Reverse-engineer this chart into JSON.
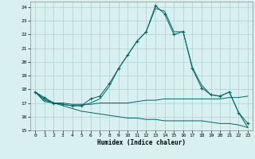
{
  "xlabel": "Humidex (Indice chaleur)",
  "line_color": "#006666",
  "bg_color": "#d8f0f0",
  "grid_color": "#b0d0d0",
  "xlim": [
    -0.5,
    23.5
  ],
  "ylim": [
    15,
    24.4
  ],
  "xticks": [
    0,
    1,
    2,
    3,
    4,
    5,
    6,
    7,
    8,
    9,
    10,
    11,
    12,
    13,
    14,
    15,
    16,
    17,
    18,
    19,
    20,
    21,
    22,
    23
  ],
  "yticks": [
    15,
    16,
    17,
    18,
    19,
    20,
    21,
    22,
    23,
    24
  ],
  "line1_marked": {
    "x": [
      0,
      1,
      2,
      3,
      4,
      5,
      6,
      7,
      8,
      9,
      10,
      11,
      12,
      13,
      14,
      15,
      16,
      17,
      18,
      19,
      20,
      21,
      22,
      23
    ],
    "y": [
      17.8,
      17.4,
      17.0,
      16.9,
      16.8,
      16.8,
      17.3,
      17.5,
      18.4,
      19.5,
      20.5,
      21.5,
      22.2,
      24.1,
      23.5,
      22.0,
      22.2,
      19.5,
      18.1,
      17.6,
      17.5,
      17.8,
      16.3,
      15.5
    ]
  },
  "line2_smooth": {
    "x": [
      0,
      1,
      2,
      3,
      4,
      5,
      6,
      7,
      8,
      9,
      10,
      11,
      12,
      13,
      14,
      15,
      16,
      17,
      18,
      19,
      20,
      21,
      22,
      23
    ],
    "y": [
      17.8,
      17.3,
      17.0,
      16.9,
      16.8,
      16.8,
      17.0,
      17.3,
      18.2,
      19.5,
      20.5,
      21.5,
      22.2,
      23.9,
      23.7,
      22.2,
      22.2,
      19.6,
      18.3,
      17.6,
      17.5,
      17.8,
      16.3,
      15.2
    ]
  },
  "line3_flat": {
    "x": [
      0,
      1,
      2,
      3,
      4,
      5,
      6,
      7,
      8,
      9,
      10,
      11,
      12,
      13,
      14,
      15,
      16,
      17,
      18,
      19,
      20,
      21,
      22,
      23
    ],
    "y": [
      17.8,
      17.1,
      17.0,
      17.0,
      16.9,
      16.9,
      16.9,
      17.0,
      17.0,
      17.0,
      17.0,
      17.1,
      17.2,
      17.2,
      17.3,
      17.3,
      17.3,
      17.3,
      17.3,
      17.3,
      17.3,
      17.4,
      17.4,
      17.5
    ]
  },
  "line4_decline": {
    "x": [
      0,
      1,
      2,
      3,
      4,
      5,
      6,
      7,
      8,
      9,
      10,
      11,
      12,
      13,
      14,
      15,
      16,
      17,
      18,
      19,
      20,
      21,
      22,
      23
    ],
    "y": [
      17.8,
      17.2,
      17.0,
      16.8,
      16.6,
      16.4,
      16.3,
      16.2,
      16.1,
      16.0,
      15.9,
      15.9,
      15.8,
      15.8,
      15.7,
      15.7,
      15.7,
      15.7,
      15.7,
      15.6,
      15.5,
      15.5,
      15.4,
      15.2
    ]
  }
}
